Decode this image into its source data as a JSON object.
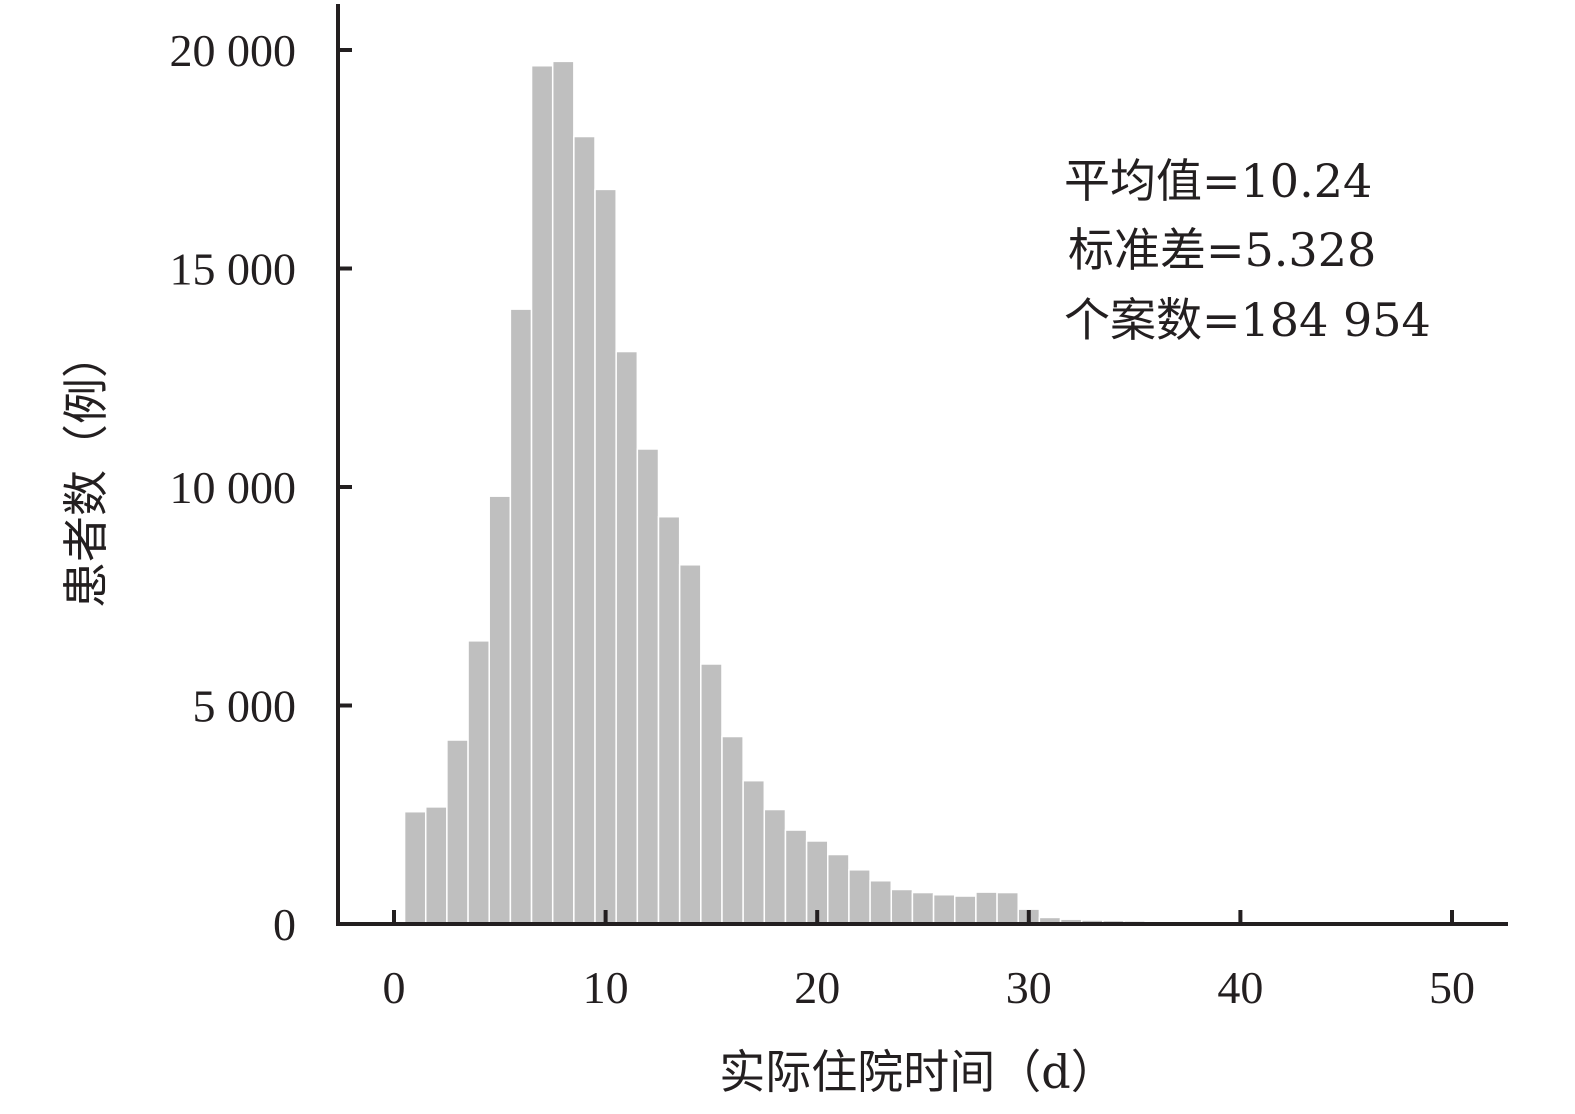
{
  "chart_data": {
    "type": "bar",
    "subtype": "histogram",
    "xlabel": "实际住院时间（d）",
    "ylabel": "患者数（例）",
    "xlim": [
      -1,
      52.5
    ],
    "ylim": [
      0,
      21000
    ],
    "x_ticks": [
      0,
      10,
      20,
      30,
      40,
      50
    ],
    "x_tick_labels": [
      "0",
      "10",
      "20",
      "30",
      "40",
      "50"
    ],
    "y_ticks": [
      0,
      5000,
      10000,
      15000,
      20000
    ],
    "y_tick_labels": [
      "0",
      "5 000",
      "10 000",
      "15 000",
      "20 000"
    ],
    "bin_width": 1,
    "bin_starts": [
      0.5,
      1.5,
      2.5,
      3.5,
      4.5,
      5.5,
      6.5,
      7.5,
      8.5,
      9.5,
      10.5,
      11.5,
      12.5,
      13.5,
      14.5,
      15.5,
      16.5,
      17.5,
      18.5,
      19.5,
      20.5,
      21.5,
      22.5,
      23.5,
      24.5,
      25.5,
      26.5,
      27.5,
      28.5,
      29.5,
      30.5,
      31.5,
      32.5,
      33.5,
      34.5,
      35.5
    ],
    "values": [
      2570,
      2680,
      4210,
      6480,
      9790,
      14070,
      19640,
      19740,
      18020,
      16810,
      13100,
      10870,
      9320,
      8220,
      5950,
      4290,
      3280,
      2620,
      2150,
      1900,
      1590,
      1240,
      990,
      790,
      720,
      670,
      640,
      730,
      720,
      340,
      150,
      110,
      90,
      80,
      70,
      40
    ],
    "stats": {
      "mean": "平均值=10.24",
      "sd": "标准差=5.328",
      "n": "个案数=184 954"
    },
    "colors": {
      "bar": "#bfbfbf",
      "axis": "#231f20"
    },
    "grid": false,
    "legend": "none"
  }
}
